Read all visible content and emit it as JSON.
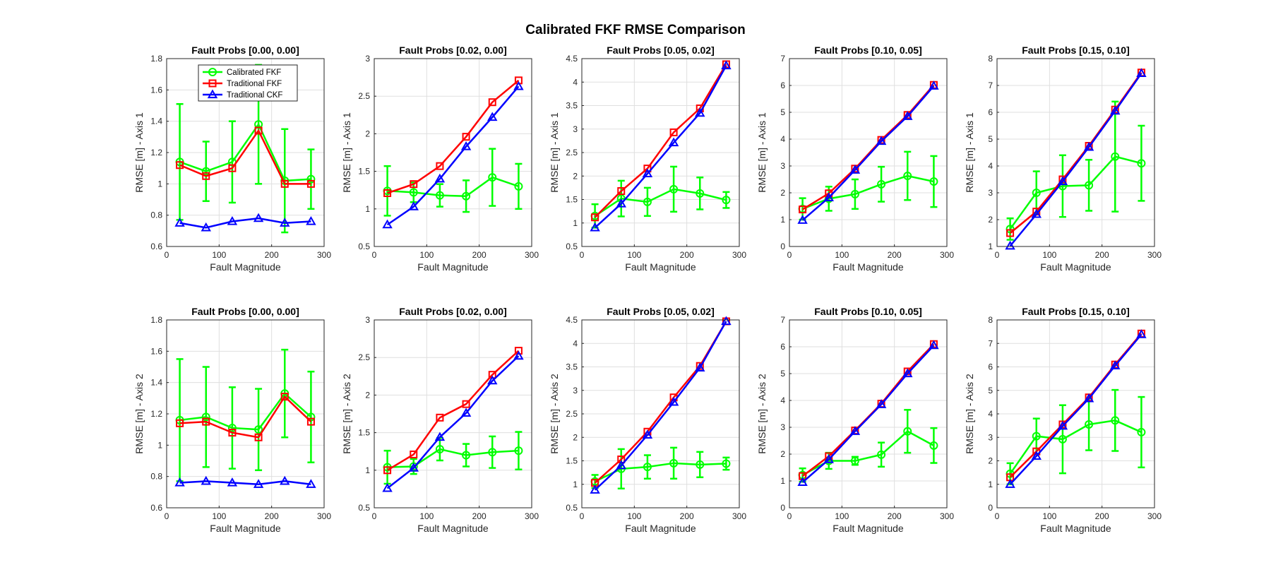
{
  "figure": {
    "title": "Calibrated FKF RMSE Comparison"
  },
  "legend": {
    "entries": [
      {
        "name": "Calibrated FKF",
        "color": "#00ff00",
        "marker": "circle"
      },
      {
        "name": "Traditional FKF",
        "color": "#ff0000",
        "marker": "square"
      },
      {
        "name": "Traditional CKF",
        "color": "#0000ff",
        "marker": "triangle"
      }
    ]
  },
  "chart_data": [
    {
      "type": "line",
      "title": "Fault Probs [0.00, 0.00]",
      "xlabel": "Fault Magnitude",
      "ylabel": "RMSE [m] - Axis 1",
      "x": [
        25,
        75,
        125,
        175,
        225,
        275
      ],
      "xlim": [
        0,
        300
      ],
      "xticks": [
        0,
        100,
        200,
        300
      ],
      "ylim": [
        0.6,
        1.8
      ],
      "yticks": [
        0.6,
        0.8,
        1,
        1.2,
        1.4,
        1.6,
        1.8
      ],
      "grid": true,
      "legend": "top-left",
      "series": [
        {
          "name": "Calibrated FKF",
          "values": [
            1.14,
            1.08,
            1.14,
            1.38,
            1.02,
            1.03
          ],
          "errors": [
            0.37,
            0.19,
            0.26,
            0.38,
            0.33,
            0.19
          ]
        },
        {
          "name": "Traditional FKF",
          "values": [
            1.12,
            1.05,
            1.1,
            1.34,
            1.0,
            1.0
          ]
        },
        {
          "name": "Traditional CKF",
          "values": [
            0.75,
            0.72,
            0.76,
            0.78,
            0.75,
            0.76
          ]
        }
      ]
    },
    {
      "type": "line",
      "title": "Fault Probs [0.02, 0.00]",
      "xlabel": "Fault Magnitude",
      "ylabel": "RMSE [m] - Axis 1",
      "x": [
        25,
        75,
        125,
        175,
        225,
        275
      ],
      "xlim": [
        0,
        300
      ],
      "xticks": [
        0,
        100,
        200,
        300
      ],
      "ylim": [
        0.5,
        3
      ],
      "yticks": [
        0.5,
        1,
        1.5,
        2,
        2.5,
        3
      ],
      "grid": true,
      "series": [
        {
          "name": "Calibrated FKF",
          "values": [
            1.24,
            1.22,
            1.18,
            1.17,
            1.42,
            1.3
          ],
          "errors": [
            0.33,
            0.13,
            0.15,
            0.21,
            0.38,
            0.3
          ]
        },
        {
          "name": "Traditional FKF",
          "values": [
            1.21,
            1.33,
            1.57,
            1.96,
            2.42,
            2.71
          ]
        },
        {
          "name": "Traditional CKF",
          "values": [
            0.79,
            1.03,
            1.4,
            1.83,
            2.22,
            2.63
          ]
        }
      ]
    },
    {
      "type": "line",
      "title": "Fault Probs [0.05, 0.02]",
      "xlabel": "Fault Magnitude",
      "ylabel": "RMSE [m] - Axis 1",
      "x": [
        25,
        75,
        125,
        175,
        225,
        275
      ],
      "xlim": [
        0,
        300
      ],
      "xticks": [
        0,
        100,
        200,
        300
      ],
      "ylim": [
        0.5,
        4.5
      ],
      "yticks": [
        0.5,
        1,
        1.5,
        2,
        2.5,
        3,
        3.5,
        4,
        4.5
      ],
      "grid": true,
      "series": [
        {
          "name": "Calibrated FKF",
          "values": [
            1.15,
            1.52,
            1.45,
            1.72,
            1.63,
            1.49
          ],
          "errors": [
            0.25,
            0.38,
            0.3,
            0.48,
            0.34,
            0.17
          ]
        },
        {
          "name": "Traditional FKF",
          "values": [
            1.12,
            1.68,
            2.16,
            2.93,
            3.44,
            4.38
          ]
        },
        {
          "name": "Traditional CKF",
          "values": [
            0.9,
            1.41,
            2.05,
            2.71,
            3.34,
            4.35
          ]
        }
      ]
    },
    {
      "type": "line",
      "title": "Fault Probs [0.10, 0.05]",
      "xlabel": "Fault Magnitude",
      "ylabel": "RMSE [m] - Axis 1",
      "x": [
        25,
        75,
        125,
        175,
        225,
        275
      ],
      "xlim": [
        0,
        300
      ],
      "xticks": [
        0,
        100,
        200,
        300
      ],
      "ylim": [
        0,
        7
      ],
      "yticks": [
        0,
        1,
        2,
        3,
        4,
        5,
        6,
        7
      ],
      "grid": true,
      "series": [
        {
          "name": "Calibrated FKF",
          "values": [
            1.4,
            1.78,
            1.95,
            2.32,
            2.63,
            2.42
          ],
          "errors": [
            0.4,
            0.45,
            0.55,
            0.65,
            0.9,
            0.95
          ]
        },
        {
          "name": "Traditional FKF",
          "values": [
            1.38,
            1.98,
            2.9,
            3.97,
            4.9,
            6.02
          ]
        },
        {
          "name": "Traditional CKF",
          "values": [
            0.98,
            1.82,
            2.85,
            3.92,
            4.85,
            5.98
          ]
        }
      ]
    },
    {
      "type": "line",
      "title": "Fault Probs [0.15, 0.10]",
      "xlabel": "Fault Magnitude",
      "ylabel": "RMSE [m] - Axis 1",
      "x": [
        25,
        75,
        125,
        175,
        225,
        275
      ],
      "xlim": [
        0,
        300
      ],
      "xticks": [
        0,
        100,
        200,
        300
      ],
      "ylim": [
        1,
        8
      ],
      "yticks": [
        1,
        2,
        3,
        4,
        5,
        6,
        7,
        8
      ],
      "grid": true,
      "series": [
        {
          "name": "Calibrated FKF",
          "values": [
            1.65,
            3.0,
            3.25,
            3.28,
            4.35,
            4.1
          ],
          "errors": [
            0.4,
            0.8,
            1.15,
            0.95,
            2.05,
            1.4
          ]
        },
        {
          "name": "Traditional FKF",
          "values": [
            1.5,
            2.3,
            3.5,
            4.75,
            6.1,
            7.48
          ]
        },
        {
          "name": "Traditional CKF",
          "values": [
            1.02,
            2.2,
            3.42,
            4.7,
            6.05,
            7.45
          ]
        }
      ]
    },
    {
      "type": "line",
      "title": "Fault Probs [0.00, 0.00]",
      "xlabel": "Fault Magnitude",
      "ylabel": "RMSE [m] - Axis 2",
      "x": [
        25,
        75,
        125,
        175,
        225,
        275
      ],
      "xlim": [
        0,
        300
      ],
      "xticks": [
        0,
        100,
        200,
        300
      ],
      "ylim": [
        0.6,
        1.8
      ],
      "yticks": [
        0.6,
        0.8,
        1,
        1.2,
        1.4,
        1.6,
        1.8
      ],
      "grid": true,
      "series": [
        {
          "name": "Calibrated FKF",
          "values": [
            1.16,
            1.18,
            1.11,
            1.1,
            1.33,
            1.18
          ],
          "errors": [
            0.39,
            0.32,
            0.26,
            0.26,
            0.28,
            0.29
          ]
        },
        {
          "name": "Traditional FKF",
          "values": [
            1.14,
            1.15,
            1.08,
            1.05,
            1.31,
            1.15
          ]
        },
        {
          "name": "Traditional CKF",
          "values": [
            0.76,
            0.77,
            0.76,
            0.75,
            0.77,
            0.75
          ]
        }
      ]
    },
    {
      "type": "line",
      "title": "Fault Probs [0.02, 0.00]",
      "xlabel": "Fault Magnitude",
      "ylabel": "RMSE [m] - Axis 2",
      "x": [
        25,
        75,
        125,
        175,
        225,
        275
      ],
      "xlim": [
        0,
        300
      ],
      "xticks": [
        0,
        100,
        200,
        300
      ],
      "ylim": [
        0.5,
        3
      ],
      "yticks": [
        0.5,
        1,
        1.5,
        2,
        2.5,
        3
      ],
      "grid": true,
      "series": [
        {
          "name": "Calibrated FKF",
          "values": [
            1.04,
            1.05,
            1.28,
            1.2,
            1.24,
            1.26
          ],
          "errors": [
            0.22,
            0.1,
            0.15,
            0.15,
            0.21,
            0.25
          ]
        },
        {
          "name": "Traditional FKF",
          "values": [
            1.0,
            1.21,
            1.7,
            1.88,
            2.27,
            2.59
          ]
        },
        {
          "name": "Traditional CKF",
          "values": [
            0.76,
            1.03,
            1.44,
            1.76,
            2.19,
            2.52
          ]
        }
      ]
    },
    {
      "type": "line",
      "title": "Fault Probs [0.05, 0.02]",
      "xlabel": "Fault Magnitude",
      "ylabel": "RMSE [m] - Axis 2",
      "x": [
        25,
        75,
        125,
        175,
        225,
        275
      ],
      "xlim": [
        0,
        300
      ],
      "xticks": [
        0,
        100,
        200,
        300
      ],
      "ylim": [
        0.5,
        4.5
      ],
      "yticks": [
        0.5,
        1,
        1.5,
        2,
        2.5,
        3,
        3.5,
        4,
        4.5
      ],
      "grid": true,
      "series": [
        {
          "name": "Calibrated FKF",
          "values": [
            1.06,
            1.33,
            1.37,
            1.45,
            1.42,
            1.44
          ],
          "errors": [
            0.14,
            0.42,
            0.25,
            0.33,
            0.27,
            0.13
          ]
        },
        {
          "name": "Traditional FKF",
          "values": [
            1.03,
            1.53,
            2.12,
            2.85,
            3.52,
            4.47
          ]
        },
        {
          "name": "Traditional CKF",
          "values": [
            0.88,
            1.4,
            2.05,
            2.75,
            3.48,
            4.47
          ]
        }
      ]
    },
    {
      "type": "line",
      "title": "Fault Probs [0.10, 0.05]",
      "xlabel": "Fault Magnitude",
      "ylabel": "RMSE [m] - Axis 2",
      "x": [
        25,
        75,
        125,
        175,
        225,
        275
      ],
      "xlim": [
        0,
        300
      ],
      "xticks": [
        0,
        100,
        200,
        300
      ],
      "ylim": [
        0,
        7
      ],
      "yticks": [
        0,
        1,
        2,
        3,
        4,
        5,
        6,
        7
      ],
      "grid": true,
      "series": [
        {
          "name": "Calibrated FKF",
          "values": [
            1.22,
            1.75,
            1.75,
            1.98,
            2.85,
            2.32
          ],
          "errors": [
            0.25,
            0.3,
            0.15,
            0.45,
            0.8,
            0.65
          ]
        },
        {
          "name": "Traditional FKF",
          "values": [
            1.18,
            1.92,
            2.88,
            3.88,
            5.08,
            6.1
          ]
        },
        {
          "name": "Traditional CKF",
          "values": [
            0.95,
            1.8,
            2.85,
            3.85,
            5.0,
            6.05
          ]
        }
      ]
    },
    {
      "type": "line",
      "title": "Fault Probs [0.15, 0.10]",
      "xlabel": "Fault Magnitude",
      "ylabel": "RMSE [m] - Axis 2",
      "x": [
        25,
        75,
        125,
        175,
        225,
        275
      ],
      "xlim": [
        0,
        300
      ],
      "xticks": [
        0,
        100,
        200,
        300
      ],
      "ylim": [
        0,
        8
      ],
      "yticks": [
        0,
        1,
        2,
        3,
        4,
        5,
        6,
        7,
        8
      ],
      "grid": true,
      "series": [
        {
          "name": "Calibrated FKF",
          "values": [
            1.45,
            3.05,
            2.92,
            3.55,
            3.72,
            3.22
          ],
          "errors": [
            0.45,
            0.75,
            1.45,
            1.1,
            1.3,
            1.5
          ]
        },
        {
          "name": "Traditional FKF",
          "values": [
            1.3,
            2.4,
            3.55,
            4.7,
            6.1,
            7.42
          ]
        },
        {
          "name": "Traditional CKF",
          "values": [
            1.0,
            2.2,
            3.48,
            4.65,
            6.05,
            7.38
          ]
        }
      ]
    }
  ]
}
